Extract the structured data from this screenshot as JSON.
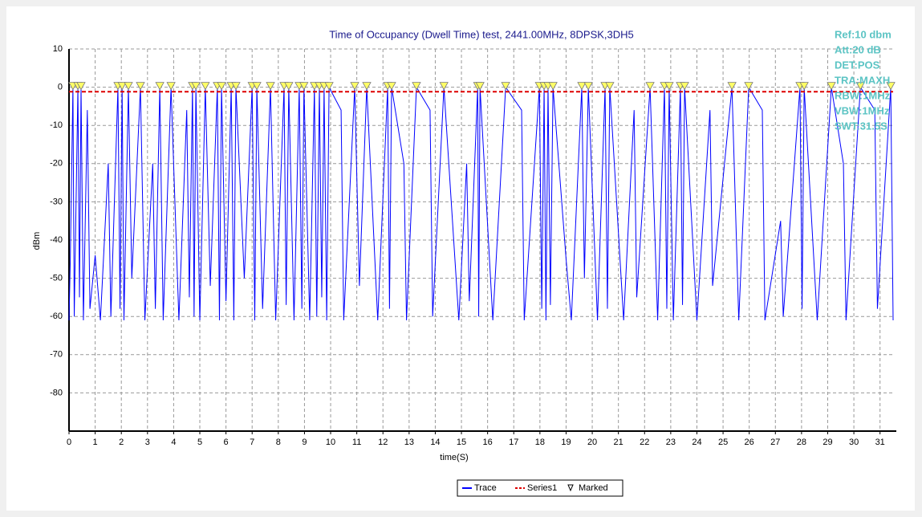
{
  "chart_data": {
    "type": "line",
    "title": "Time of Occupancy (Dwell Time) test, 2441.00MHz, 8DPSK,3DH5",
    "xlabel": "time(S)",
    "ylabel": "dBm",
    "annotations": [
      "Ref:10 dbm",
      "Att:20 dB",
      "DET:POS",
      "TRA:MAXH",
      "RBW:1MHz",
      "VBW:1MHz",
      "SWT:31.5S"
    ],
    "xlim": [
      0,
      31.5
    ],
    "ylim": [
      -90,
      10
    ],
    "xticks": [
      0,
      1,
      2,
      3,
      4,
      5,
      6,
      7,
      8,
      9,
      10,
      11,
      12,
      13,
      14,
      15,
      16,
      17,
      18,
      19,
      20,
      21,
      22,
      23,
      24,
      25,
      26,
      27,
      28,
      29,
      30,
      31
    ],
    "yticks": [
      -80,
      -70,
      -60,
      -50,
      -40,
      -30,
      -20,
      -10,
      0,
      10
    ],
    "grid": true,
    "legend": "bottom",
    "series": [
      {
        "name": "Trace",
        "color": "#0000ff",
        "x": [
          0,
          0.05,
          0.15,
          0.2,
          0.34,
          0.4,
          0.46,
          0.55,
          0.7,
          0.8,
          1.0,
          1.2,
          1.5,
          1.6,
          1.87,
          1.95,
          2.03,
          2.1,
          2.27,
          2.4,
          2.73,
          2.9,
          3.2,
          3.3,
          3.47,
          3.6,
          3.9,
          4.2,
          4.5,
          4.6,
          4.72,
          4.78,
          4.85,
          5.0,
          5.21,
          5.4,
          5.67,
          5.75,
          5.83,
          6.0,
          6.2,
          6.3,
          6.38,
          6.7,
          7.0,
          7.1,
          7.18,
          7.4,
          7.7,
          7.9,
          8.22,
          8.3,
          8.4,
          8.6,
          8.8,
          8.9,
          8.98,
          9.2,
          9.38,
          9.47,
          9.57,
          9.66,
          9.75,
          9.85,
          9.94,
          10.4,
          10.5,
          10.92,
          11.1,
          11.38,
          11.8,
          12.18,
          12.25,
          12.33,
          12.8,
          12.9,
          13.28,
          13.8,
          13.9,
          14.33,
          14.9,
          15.2,
          15.3,
          15.62,
          15.66,
          15.71,
          16.2,
          16.69,
          17.3,
          17.4,
          17.98,
          18.07,
          18.16,
          18.23,
          18.31,
          18.4,
          18.5,
          19.0,
          19.2,
          19.6,
          19.7,
          19.85,
          20.2,
          20.49,
          20.58,
          20.67,
          21.2,
          21.6,
          21.7,
          22.21,
          22.5,
          22.76,
          22.85,
          22.94,
          23.1,
          23.37,
          23.45,
          23.53,
          24.0,
          24.5,
          24.6,
          25.34,
          25.6,
          25.98,
          26.5,
          26.6,
          27.2,
          27.3,
          27.94,
          28.02,
          28.1,
          28.6,
          29.14,
          29.6,
          29.7,
          30.25,
          30.8,
          30.9,
          31.41,
          31.5
        ],
        "values": [
          -61,
          -45,
          0,
          -60,
          0,
          -55,
          0,
          -61,
          -6,
          -58,
          -44,
          -61,
          -20,
          -60,
          0,
          -58,
          0,
          -61,
          0,
          -50,
          0,
          -61,
          -20,
          -58,
          0,
          -61,
          0,
          -61,
          -6,
          -55,
          0,
          -60,
          0,
          -61,
          0,
          -52,
          0,
          -61,
          0,
          -56,
          0,
          -61,
          0,
          -50,
          0,
          -61,
          0,
          -58,
          0,
          -61,
          0,
          -57,
          0,
          -61,
          0,
          -58,
          0,
          -61,
          0,
          -60,
          0,
          -55,
          0,
          -61,
          0,
          -6,
          -61,
          0,
          -52,
          0,
          -61,
          0,
          -58,
          0,
          -20,
          -61,
          0,
          -6,
          -60,
          0,
          -61,
          -20,
          -56,
          0,
          -60,
          0,
          -61,
          0,
          -6,
          -61,
          0,
          -58,
          0,
          -61,
          0,
          -57,
          0,
          -45,
          -61,
          0,
          -50,
          0,
          -61,
          0,
          -58,
          0,
          -61,
          -6,
          -55,
          0,
          -61,
          0,
          -58,
          0,
          -61,
          0,
          -57,
          0,
          -61,
          -6,
          -52,
          0,
          -61,
          0,
          -6,
          -61,
          -35,
          -60,
          0,
          -58,
          0,
          -61,
          0,
          -20,
          -61,
          0,
          -6,
          -58,
          0,
          -61
        ]
      },
      {
        "name": "Series1",
        "color": "#dd0000",
        "dash": true,
        "x": [
          0,
          31.5
        ],
        "values": [
          -1.2,
          -1.2
        ]
      },
      {
        "name": "Marked",
        "color": "#ffff66",
        "marker": "triangle",
        "x": [
          0.15,
          0.34,
          0.46,
          1.87,
          2.03,
          2.27,
          2.73,
          3.47,
          3.9,
          4.72,
          4.85,
          5.21,
          5.67,
          5.83,
          6.2,
          6.38,
          7.0,
          7.18,
          7.7,
          8.22,
          8.4,
          8.8,
          8.98,
          9.38,
          9.57,
          9.75,
          9.94,
          10.92,
          11.38,
          12.18,
          12.33,
          13.28,
          14.33,
          15.62,
          15.71,
          16.69,
          17.98,
          18.16,
          18.31,
          18.5,
          19.6,
          19.85,
          20.49,
          20.67,
          22.21,
          22.76,
          22.94,
          23.37,
          23.53,
          25.34,
          25.98,
          27.94,
          28.1,
          29.14,
          30.25,
          31.41
        ],
        "values": [
          0,
          0,
          0,
          0,
          0,
          0,
          0,
          0,
          0,
          0,
          0,
          0,
          0,
          0,
          0,
          0,
          0,
          0,
          0,
          0,
          0,
          0,
          0,
          0,
          0,
          0,
          0,
          0,
          0,
          0,
          0,
          0,
          0,
          0,
          0,
          0,
          0,
          0,
          0,
          0,
          0,
          0,
          0,
          0,
          0,
          0,
          0,
          0,
          0,
          0,
          0,
          0,
          0,
          0,
          0,
          0
        ]
      }
    ]
  }
}
